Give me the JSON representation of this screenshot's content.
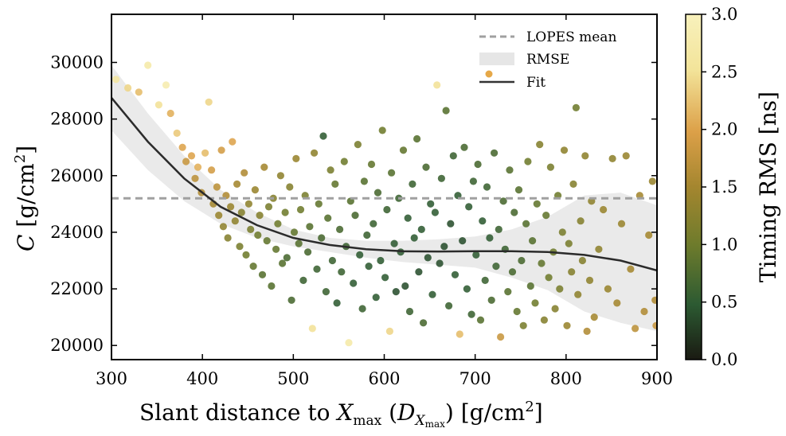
{
  "chart_data": {
    "type": "scatter",
    "xlabel": {
      "main": "Slant distance to ",
      "var": "X",
      "sub": "max",
      "paren_open": " (",
      "dvar": "D",
      "dsub_var": "X",
      "dsub_sub": "max",
      "paren_close": ")",
      "unit": " [g/cm",
      "unit_sup": "2",
      "unit_close": "]"
    },
    "ylabel": {
      "var": "C",
      "unit": " [g/cm",
      "unit_sup": "2",
      "unit_close": "]"
    },
    "xlim": [
      300,
      900
    ],
    "ylim": [
      19500,
      31700
    ],
    "xticks": [
      "300",
      "400",
      "500",
      "600",
      "700",
      "800",
      "900"
    ],
    "xtick_values": [
      300,
      400,
      500,
      600,
      700,
      800,
      900
    ],
    "yticks": [
      "20000",
      "22000",
      "24000",
      "26000",
      "28000",
      "30000"
    ],
    "ytick_values": [
      20000,
      22000,
      24000,
      26000,
      28000,
      30000
    ],
    "colorbar": {
      "label": "Timing RMS [ns]",
      "ticks": [
        "0.0",
        "0.5",
        "1.0",
        "1.5",
        "2.0",
        "2.5",
        "3.0"
      ],
      "tick_values": [
        0,
        0.5,
        1.0,
        1.5,
        2.0,
        2.5,
        3.0
      ],
      "range": [
        0,
        3.0
      ],
      "colors": [
        "#1a1a12",
        "#2c5a32",
        "#6d7b2c",
        "#a4862f",
        "#dca048",
        "#f3e49a",
        "#f8f1bc"
      ]
    },
    "lopes_mean": 25200,
    "fit": {
      "x": [
        300,
        340,
        380,
        420,
        460,
        500,
        540,
        580,
        620,
        660,
        700,
        740,
        780,
        820,
        860,
        900
      ],
      "y": [
        28750,
        27200,
        25900,
        24900,
        24250,
        23800,
        23550,
        23400,
        23330,
        23320,
        23330,
        23330,
        23300,
        23200,
        23000,
        22650
      ]
    },
    "rmse_band": {
      "x": [
        300,
        340,
        380,
        420,
        460,
        500,
        540,
        580,
        620,
        660,
        700,
        740,
        780,
        820,
        860,
        900
      ],
      "upper": [
        29900,
        28200,
        26700,
        25500,
        24700,
        24100,
        23800,
        23700,
        23700,
        23750,
        23850,
        24100,
        24550,
        25300,
        25400,
        24950
      ],
      "lower": [
        27600,
        26200,
        25100,
        24300,
        23800,
        23500,
        23300,
        23100,
        22950,
        22850,
        22750,
        22400,
        21950,
        21200,
        20800,
        20500
      ]
    },
    "legend": {
      "position": "top-right",
      "entries": [
        "LOPES mean",
        "RMSE",
        "Fit"
      ]
    },
    "series": [
      {
        "points": [
          [
            305,
            29400,
            2.6
          ],
          [
            318,
            29100,
            2.4
          ],
          [
            330,
            28950,
            2.2
          ],
          [
            340,
            29900,
            2.7
          ],
          [
            352,
            28500,
            2.5
          ],
          [
            360,
            29200,
            2.8
          ],
          [
            365,
            28200,
            2.1
          ],
          [
            372,
            27500,
            2.3
          ],
          [
            378,
            27000,
            2.0
          ],
          [
            382,
            26500,
            1.8
          ],
          [
            388,
            26700,
            2.0
          ],
          [
            392,
            25900,
            1.7
          ],
          [
            395,
            26300,
            2.1
          ],
          [
            399,
            25400,
            1.6
          ],
          [
            403,
            26800,
            2.2
          ],
          [
            407,
            28600,
            2.4
          ],
          [
            410,
            26200,
            1.9
          ],
          [
            412,
            25000,
            1.5
          ],
          [
            416,
            25600,
            1.7
          ],
          [
            418,
            24600,
            1.4
          ],
          [
            421,
            26900,
            1.9
          ],
          [
            423,
            24200,
            1.3
          ],
          [
            426,
            25300,
            1.6
          ],
          [
            428,
            23800,
            1.2
          ],
          [
            431,
            24900,
            1.4
          ],
          [
            433,
            27200,
            2.0
          ],
          [
            436,
            24400,
            1.3
          ],
          [
            438,
            25700,
            1.5
          ],
          [
            441,
            23500,
            1.1
          ],
          [
            443,
            24700,
            1.2
          ],
          [
            446,
            26100,
            1.6
          ],
          [
            448,
            23200,
            1.0
          ],
          [
            451,
            25000,
            1.3
          ],
          [
            453,
            24100,
            1.1
          ],
          [
            456,
            22800,
            0.9
          ],
          [
            458,
            25500,
            1.4
          ],
          [
            461,
            23900,
            1.0
          ],
          [
            463,
            24600,
            1.2
          ],
          [
            466,
            22500,
            0.8
          ],
          [
            468,
            26300,
            1.5
          ],
          [
            471,
            23700,
            0.9
          ],
          [
            473,
            24900,
            1.1
          ],
          [
            476,
            22100,
            0.8
          ],
          [
            478,
            25200,
            1.2
          ],
          [
            481,
            23400,
            0.9
          ],
          [
            483,
            24300,
            1.0
          ],
          [
            486,
            26000,
            1.3
          ],
          [
            488,
            22900,
            0.8
          ],
          [
            491,
            24700,
            1.0
          ],
          [
            493,
            23100,
            0.7
          ],
          [
            496,
            25600,
            1.2
          ],
          [
            498,
            21600,
            0.7
          ],
          [
            501,
            24000,
            0.9
          ],
          [
            503,
            26600,
            1.4
          ],
          [
            506,
            23600,
            0.8
          ],
          [
            508,
            24800,
            1.0
          ],
          [
            511,
            22300,
            0.6
          ],
          [
            513,
            25300,
            1.1
          ],
          [
            516,
            23300,
            0.7
          ],
          [
            518,
            24200,
            0.8
          ],
          [
            521,
            20600,
            2.5
          ],
          [
            523,
            26800,
            1.3
          ],
          [
            526,
            22700,
            0.6
          ],
          [
            528,
            25000,
            0.9
          ],
          [
            531,
            23800,
            0.7
          ],
          [
            533,
            27400,
            0.5
          ],
          [
            536,
            21900,
            0.6
          ],
          [
            538,
            24500,
            0.8
          ],
          [
            541,
            26200,
            1.1
          ],
          [
            543,
            23000,
            0.6
          ],
          [
            546,
            25700,
            0.9
          ],
          [
            548,
            21500,
            0.5
          ],
          [
            551,
            24100,
            0.7
          ],
          [
            553,
            22600,
            0.6
          ],
          [
            556,
            26500,
            1.0
          ],
          [
            558,
            23500,
            0.6
          ],
          [
            561,
            20100,
            2.7
          ],
          [
            563,
            25100,
            0.8
          ],
          [
            566,
            22200,
            0.5
          ],
          [
            568,
            24600,
            0.7
          ],
          [
            571,
            27100,
            1.1
          ],
          [
            573,
            23200,
            0.5
          ],
          [
            576,
            21300,
            0.6
          ],
          [
            578,
            25800,
            0.8
          ],
          [
            581,
            23900,
            0.6
          ],
          [
            583,
            22800,
            0.5
          ],
          [
            586,
            26400,
            0.9
          ],
          [
            588,
            24300,
            0.6
          ],
          [
            591,
            21700,
            0.5
          ],
          [
            593,
            25400,
            0.7
          ],
          [
            596,
            23000,
            0.5
          ],
          [
            598,
            27600,
            1.0
          ],
          [
            601,
            22400,
            0.5
          ],
          [
            603,
            24800,
            0.6
          ],
          [
            606,
            20500,
            2.4
          ],
          [
            608,
            26100,
            0.8
          ],
          [
            611,
            23600,
            0.5
          ],
          [
            613,
            21900,
            0.4
          ],
          [
            616,
            25200,
            0.6
          ],
          [
            618,
            23300,
            0.5
          ],
          [
            621,
            26900,
            0.9
          ],
          [
            623,
            22100,
            0.4
          ],
          [
            626,
            24500,
            0.5
          ],
          [
            628,
            21200,
            0.6
          ],
          [
            631,
            25700,
            0.6
          ],
          [
            633,
            23800,
            0.5
          ],
          [
            636,
            27300,
            0.8
          ],
          [
            638,
            22600,
            0.4
          ],
          [
            641,
            24100,
            0.5
          ],
          [
            643,
            20800,
            0.7
          ],
          [
            646,
            26300,
            0.7
          ],
          [
            648,
            23100,
            0.4
          ],
          [
            651,
            25000,
            0.5
          ],
          [
            653,
            21800,
            0.5
          ],
          [
            656,
            24700,
            0.5
          ],
          [
            658,
            29200,
            2.5
          ],
          [
            661,
            22900,
            0.4
          ],
          [
            663,
            25900,
            0.6
          ],
          [
            666,
            23500,
            0.4
          ],
          [
            668,
            28300,
            0.8
          ],
          [
            671,
            21400,
            0.6
          ],
          [
            673,
            24300,
            0.4
          ],
          [
            676,
            26700,
            0.6
          ],
          [
            678,
            22500,
            0.5
          ],
          [
            681,
            25300,
            0.5
          ],
          [
            683,
            20400,
            2.2
          ],
          [
            686,
            23700,
            0.4
          ],
          [
            688,
            27000,
            0.7
          ],
          [
            691,
            22000,
            0.5
          ],
          [
            693,
            24900,
            0.5
          ],
          [
            696,
            21100,
            0.6
          ],
          [
            698,
            25800,
            0.6
          ],
          [
            701,
            23200,
            0.5
          ],
          [
            703,
            26400,
            0.7
          ],
          [
            706,
            20900,
            0.8
          ],
          [
            708,
            24400,
            0.5
          ],
          [
            711,
            22300,
            0.6
          ],
          [
            713,
            25600,
            0.6
          ],
          [
            716,
            23800,
            0.5
          ],
          [
            718,
            21600,
            0.7
          ],
          [
            721,
            26800,
            0.7
          ],
          [
            723,
            22800,
            0.6
          ],
          [
            726,
            24100,
            0.6
          ],
          [
            728,
            20300,
            1.8
          ],
          [
            731,
            25100,
            0.7
          ],
          [
            733,
            23400,
            0.6
          ],
          [
            736,
            21900,
            0.8
          ],
          [
            738,
            26200,
            0.8
          ],
          [
            741,
            22600,
            0.7
          ],
          [
            743,
            24700,
            0.7
          ],
          [
            746,
            21200,
            0.9
          ],
          [
            748,
            25500,
            0.8
          ],
          [
            751,
            23000,
            0.7
          ],
          [
            753,
            20700,
            1.1
          ],
          [
            756,
            24300,
            0.8
          ],
          [
            758,
            26500,
            1.0
          ],
          [
            761,
            22100,
            0.8
          ],
          [
            763,
            23700,
            0.8
          ],
          [
            766,
            21500,
            1.0
          ],
          [
            768,
            25000,
            0.9
          ],
          [
            771,
            27100,
            1.2
          ],
          [
            773,
            22900,
            0.9
          ],
          [
            776,
            20900,
            1.2
          ],
          [
            778,
            24600,
            0.9
          ],
          [
            781,
            22400,
            1.0
          ],
          [
            783,
            26300,
            1.1
          ],
          [
            786,
            23300,
            1.0
          ],
          [
            788,
            21300,
            1.2
          ],
          [
            791,
            25300,
            1.0
          ],
          [
            793,
            22000,
            1.1
          ],
          [
            796,
            24000,
            1.1
          ],
          [
            798,
            26900,
            1.3
          ],
          [
            801,
            20700,
            1.4
          ],
          [
            803,
            23600,
            1.1
          ],
          [
            806,
            22600,
            1.2
          ],
          [
            808,
            25700,
            1.2
          ],
          [
            811,
            28400,
            1.0
          ],
          [
            813,
            21800,
            1.3
          ],
          [
            816,
            24400,
            1.2
          ],
          [
            818,
            23000,
            1.2
          ],
          [
            821,
            26700,
            1.3
          ],
          [
            823,
            20500,
            1.6
          ],
          [
            826,
            22300,
            1.3
          ],
          [
            828,
            25100,
            1.3
          ],
          [
            831,
            21000,
            1.5
          ],
          [
            836,
            23400,
            1.3
          ],
          [
            841,
            24800,
            1.4
          ],
          [
            846,
            22000,
            1.4
          ],
          [
            851,
            26600,
            1.3
          ],
          [
            856,
            21500,
            1.5
          ],
          [
            861,
            24300,
            1.4
          ],
          [
            866,
            26700,
            1.4
          ],
          [
            871,
            22700,
            1.5
          ],
          [
            876,
            20600,
            1.7
          ],
          [
            881,
            25300,
            1.5
          ],
          [
            886,
            21200,
            1.6
          ],
          [
            891,
            23900,
            1.5
          ],
          [
            895,
            25800,
            1.4
          ],
          [
            898,
            21600,
            1.6
          ],
          [
            899,
            20700,
            1.8
          ]
        ]
      }
    ]
  }
}
